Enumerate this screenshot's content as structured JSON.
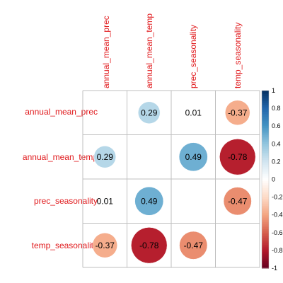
{
  "chart_data": {
    "type": "heatmap",
    "variables": [
      "annual_mean_prec",
      "annual_mean_temp",
      "prec_seasonality",
      "temp_seasonality"
    ],
    "matrix": [
      [
        null,
        0.29,
        0.01,
        -0.37
      ],
      [
        0.29,
        null,
        0.49,
        -0.78
      ],
      [
        0.01,
        0.49,
        null,
        -0.47
      ],
      [
        -0.37,
        -0.78,
        -0.47,
        null
      ]
    ],
    "diagonal_blank": true,
    "colorbar": {
      "min": -1,
      "max": 1,
      "ticks": [
        "1",
        "0.8",
        "0.6",
        "0.4",
        "0.2",
        "0",
        "-0.2",
        "-0.4",
        "-0.6",
        "-0.8",
        "-1"
      ]
    },
    "label_color": "#e0191c",
    "grid_color": "#bfbfbf",
    "palette": [
      "#67001f",
      "#b2182b",
      "#d6604d",
      "#f4a582",
      "#fddbc7",
      "#ffffff",
      "#d1e5f0",
      "#92c5de",
      "#4393c3",
      "#2166ac",
      "#053061"
    ]
  }
}
